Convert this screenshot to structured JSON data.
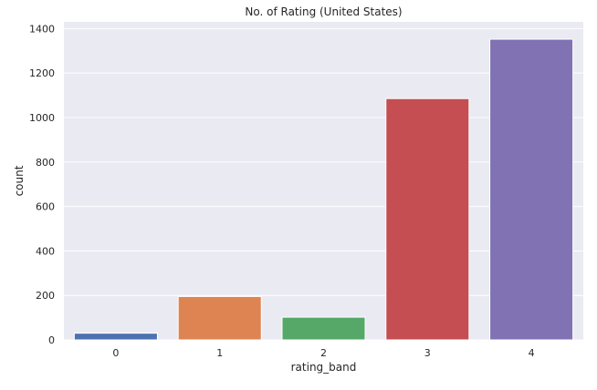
{
  "chart_data": {
    "type": "bar",
    "title": "No. of Rating (United States)",
    "xlabel": "rating_band",
    "ylabel": "count",
    "categories": [
      "0",
      "1",
      "2",
      "3",
      "4"
    ],
    "values": [
      30,
      195,
      102,
      1085,
      1352
    ],
    "colors": [
      "#4c72b0",
      "#dd8452",
      "#55a868",
      "#c44e52",
      "#8172b3"
    ],
    "ylim": [
      0,
      1430
    ],
    "yticks": [
      0,
      200,
      400,
      600,
      800,
      1000,
      1200,
      1400
    ],
    "grid": true,
    "background": "#eaeaf2"
  }
}
